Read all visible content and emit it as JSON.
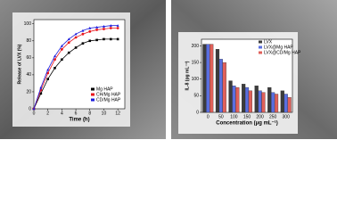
{
  "chart_data": [
    {
      "type": "line",
      "ylabel": "Release of LVX (%)",
      "xlabel": "Time (h)",
      "x": [
        0,
        1,
        2,
        3,
        4,
        5,
        6,
        7,
        8,
        9,
        10,
        11,
        12
      ],
      "series": [
        {
          "name": "Mg HAP",
          "color": "#000000",
          "marker": "square",
          "values": [
            0,
            18,
            35,
            48,
            58,
            66,
            72,
            77,
            80,
            81,
            82,
            82,
            82
          ]
        },
        {
          "name": "CH/Mg HAP",
          "color": "#e8141c",
          "marker": "circle",
          "values": [
            0,
            22,
            42,
            58,
            70,
            78,
            84,
            88,
            91,
            93,
            94,
            95,
            95
          ]
        },
        {
          "name": "CD/Mg HAP",
          "color": "#1a1adc",
          "marker": "triangle",
          "values": [
            0,
            25,
            46,
            62,
            74,
            82,
            88,
            92,
            95,
            96,
            97,
            98,
            98
          ]
        }
      ],
      "xlim": [
        0,
        13
      ],
      "xticks": [
        0,
        2,
        4,
        6,
        8,
        10,
        12
      ],
      "ylim": [
        0,
        105
      ],
      "yticks": [
        0,
        20,
        40,
        60,
        80,
        100
      ],
      "legend": "lower right"
    },
    {
      "type": "bar",
      "ylabel": "IL-8 (pg mL⁻¹)",
      "xlabel": "Concentration (μg mL⁻¹)",
      "categories": [
        "0",
        "50",
        "100",
        "150",
        "200",
        "250",
        "300"
      ],
      "series": [
        {
          "name": "LVX",
          "color": "#3c3c3c",
          "values": [
            205,
            190,
            95,
            85,
            80,
            75,
            65
          ]
        },
        {
          "name": "LVX@Mg HAP",
          "color": "#5a6fe0",
          "values": [
            205,
            160,
            80,
            75,
            65,
            60,
            55
          ]
        },
        {
          "name": "LVX@CD/Mg HAP",
          "color": "#e0605a",
          "values": [
            205,
            150,
            75,
            65,
            60,
            55,
            45
          ]
        }
      ],
      "ylim": [
        0,
        220
      ],
      "yticks": [
        0,
        50,
        100,
        150,
        200
      ],
      "legend": "upper right"
    }
  ]
}
